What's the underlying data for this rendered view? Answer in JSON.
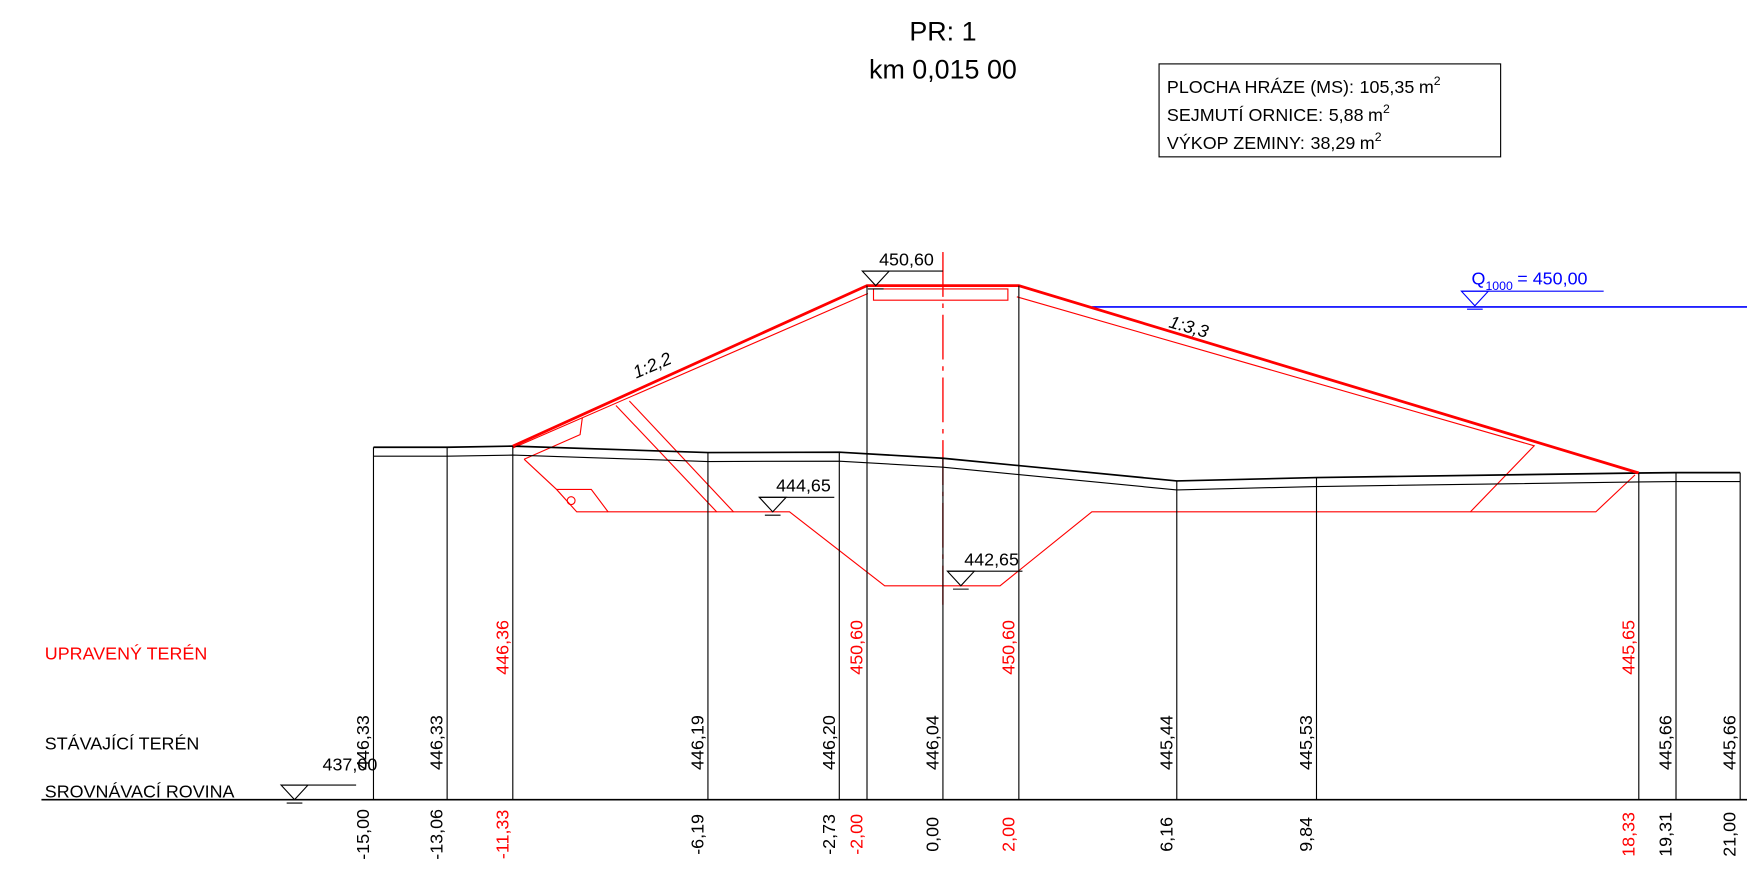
{
  "header": {
    "title": "PR: 1",
    "subtitle": "km 0,015 00"
  },
  "info_box": [
    {
      "label": "PLOCHA HRÁZE (MS):",
      "value": "105,35",
      "unit": "m",
      "exponent": "2"
    },
    {
      "label": "SEJMUTÍ ORNICE:",
      "value": "5,88",
      "unit": "m",
      "exponent": "2"
    },
    {
      "label": "VÝKOP ZEMINY:",
      "value": "38,29",
      "unit": "m",
      "exponent": "2"
    }
  ],
  "row_labels": {
    "design": "UPRAVENÝ TERÉN",
    "existing": "STÁVAJÍCÍ TERÉN",
    "datum": "SROVNÁVACÍ ROVINA"
  },
  "datum_level": "437,00",
  "stations": [
    {
      "station": "-15,00",
      "existing": "446,33"
    },
    {
      "station": "-13,06",
      "existing": "446,33"
    },
    {
      "station": "-11,33",
      "design": "446,36"
    },
    {
      "station": "-6,19",
      "existing": "446,19"
    },
    {
      "station": "-2,73",
      "existing": "446,20"
    },
    {
      "station": "-2,00",
      "design": "450,60"
    },
    {
      "station": "0,00",
      "existing": "446,04"
    },
    {
      "station": "2,00",
      "design": "450,60"
    },
    {
      "station": "6,16",
      "existing": "445,44"
    },
    {
      "station": "9,84",
      "existing": "445,53"
    },
    {
      "station": "18,33",
      "design": "445,65"
    },
    {
      "station": "19,31",
      "existing": "445,66"
    },
    {
      "station": "21,00",
      "existing": "445,66"
    }
  ],
  "levels": {
    "crest": "450,60",
    "berm": "444,65",
    "channel": "442,65"
  },
  "water": {
    "symbol": "Q",
    "subscript": "1000",
    "text": "= 450,00"
  },
  "slopes": {
    "left": "1:2,2",
    "right": "1:3,3"
  }
}
